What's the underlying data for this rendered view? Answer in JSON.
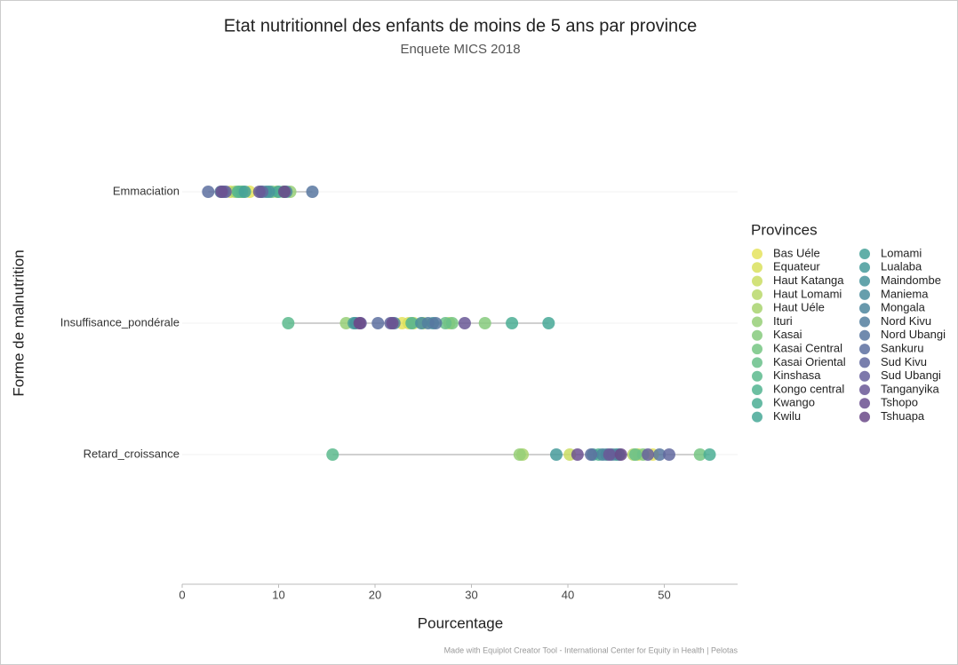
{
  "chart_data": {
    "type": "dot",
    "title": "Etat nutritionnel des enfants de moins de 5 ans par province",
    "subtitle": "Enquete MICS 2018",
    "x_label": "Pourcentage",
    "y_label": "Forme de malnutrition",
    "legend_title": "Provinces",
    "caption": "Made with Equiplot Creator Tool - International Center for Equity in Health | Pelotas",
    "categories": [
      "Emmaciation",
      "Insuffisance_pondérale",
      "Retard_croissance"
    ],
    "xlim": [
      0,
      57.6
    ],
    "xticks": [
      0,
      10,
      20,
      30,
      40,
      50
    ],
    "grid": true,
    "legend_position": "right",
    "series": [
      {
        "name": "Bas Uéle",
        "color": "#e5e35d",
        "values": [
          7.0,
          22.8,
          48.8
        ]
      },
      {
        "name": "Equateur",
        "color": "#d9e15d",
        "values": [
          5.0,
          23.5,
          47.3
        ]
      },
      {
        "name": "Haut Katanga",
        "color": "#cadd63",
        "values": [
          6.3,
          24.0,
          40.2
        ]
      },
      {
        "name": "Haut Lomami",
        "color": "#b9d86a",
        "values": [
          9.8,
          27.7,
          46.8
        ]
      },
      {
        "name": "Haut Uéle",
        "color": "#a8d46f",
        "values": [
          5.5,
          25.0,
          35.3
        ]
      },
      {
        "name": "Ituri",
        "color": "#97cf77",
        "values": [
          11.2,
          17.0,
          35.0
        ]
      },
      {
        "name": "Kasai",
        "color": "#86ca7d",
        "values": [
          6.0,
          31.4,
          47.8
        ]
      },
      {
        "name": "Kasai Central",
        "color": "#76c583",
        "values": [
          10.5,
          28.0,
          53.7
        ]
      },
      {
        "name": "Kasai Oriental",
        "color": "#68bf89",
        "values": [
          9.3,
          27.3,
          47.0
        ]
      },
      {
        "name": "Kinshasa",
        "color": "#5cba8d",
        "values": [
          6.2,
          11.0,
          15.6
        ]
      },
      {
        "name": "Kongo central",
        "color": "#52b491",
        "values": [
          5.8,
          23.8,
          43.2
        ]
      },
      {
        "name": "Kwango",
        "color": "#4bae94",
        "values": [
          8.2,
          34.2,
          54.7
        ]
      },
      {
        "name": "Kwilu",
        "color": "#47a896",
        "values": [
          10.0,
          38.0,
          45.0
        ]
      },
      {
        "name": "Lomami",
        "color": "#45a199",
        "values": [
          6.5,
          17.8,
          42.6
        ]
      },
      {
        "name": "Lualaba",
        "color": "#469b9b",
        "values": [
          8.7,
          26.0,
          38.8
        ]
      },
      {
        "name": "Maindombe",
        "color": "#48949c",
        "values": [
          9.0,
          18.0,
          44.0
        ]
      },
      {
        "name": "Maniema",
        "color": "#4b8d9d",
        "values": [
          4.3,
          24.8,
          45.3
        ]
      },
      {
        "name": "Mongala",
        "color": "#4e869e",
        "values": [
          10.8,
          22.0,
          43.6
        ]
      },
      {
        "name": "Nord Kivu",
        "color": "#537f9f",
        "values": [
          4.0,
          25.5,
          44.6
        ]
      },
      {
        "name": "Nord Ubangi",
        "color": "#5877a0",
        "values": [
          13.5,
          26.3,
          49.5
        ]
      },
      {
        "name": "Sankuru",
        "color": "#5d70a0",
        "values": [
          2.7,
          20.3,
          42.4
        ]
      },
      {
        "name": "Sud Kivu",
        "color": "#61689f",
        "values": [
          8.3,
          21.6,
          50.5
        ]
      },
      {
        "name": "Sud Ubangi",
        "color": "#66609c",
        "values": [
          4.5,
          18.5,
          48.3
        ]
      },
      {
        "name": "Tanganyika",
        "color": "#6a5896",
        "values": [
          8.0,
          29.3,
          44.3
        ]
      },
      {
        "name": "Tshopo",
        "color": "#6b5090",
        "values": [
          4.1,
          21.8,
          41.0
        ]
      },
      {
        "name": "Tshuapa",
        "color": "#6b4a88",
        "values": [
          10.6,
          18.4,
          45.5
        ]
      }
    ]
  }
}
